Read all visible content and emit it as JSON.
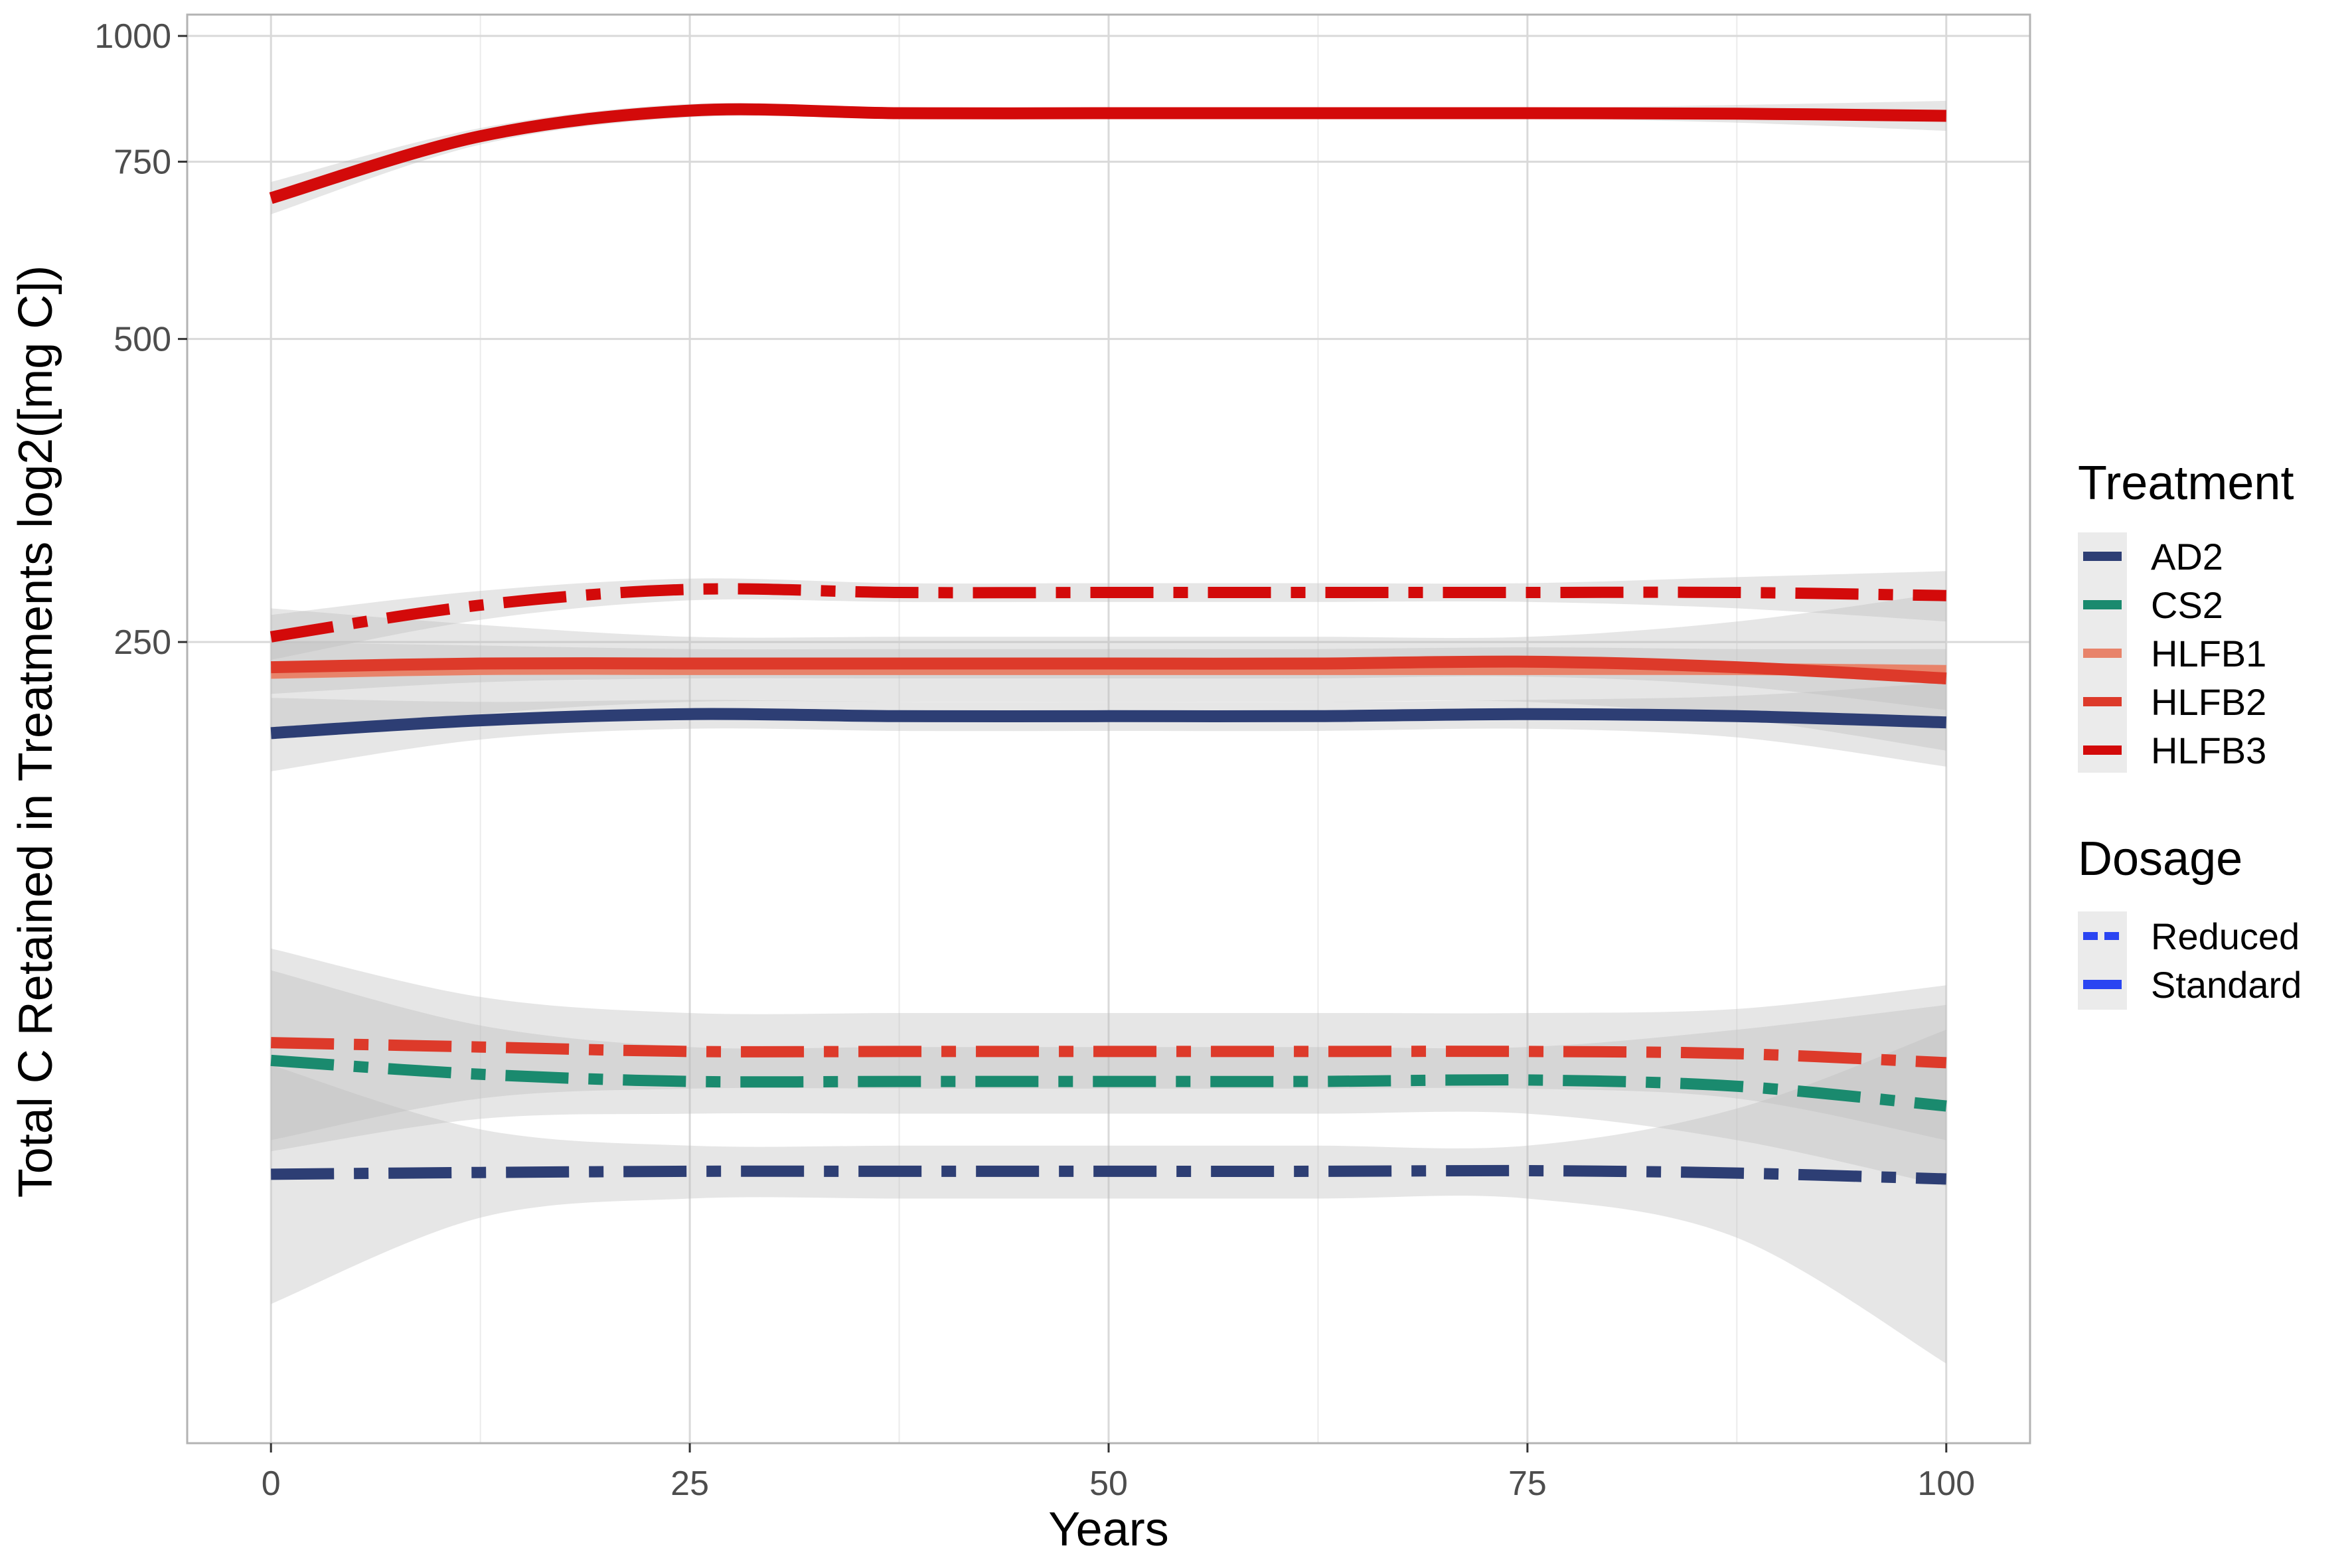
{
  "chart_data": {
    "type": "line",
    "xlabel": "Years",
    "ylabel": "Total C Retained in Treatments log2([mg C])",
    "scale": {
      "y": "log2"
    },
    "xlim": [
      -5,
      105
    ],
    "ylim": [
      40,
      1050
    ],
    "xticks": [
      0,
      25,
      50,
      75,
      100
    ],
    "xtick_labels": [
      "0",
      "25",
      "50",
      "75",
      "100"
    ],
    "yticks": [
      250,
      500,
      750,
      1000
    ],
    "ytick_labels": [
      "250",
      "500",
      "750",
      "1000"
    ],
    "grid": true,
    "legend_position": "right",
    "colors": {
      "AD2": "#2d3e74",
      "CS2": "#1a8a6e",
      "HLFB1": "#e8836a",
      "HLFB2": "#dd3a2a",
      "HLFB3": "#d30a0a",
      "ribbon": "#bebebe",
      "grid": "#d9d9d9",
      "frame": "#b3b3b3"
    },
    "legends": [
      {
        "title": "Treatment",
        "items": [
          {
            "label": "AD2",
            "color": "#2d3e74"
          },
          {
            "label": "CS2",
            "color": "#1a8a6e"
          },
          {
            "label": "HLFB1",
            "color": "#e8836a"
          },
          {
            "label": "HLFB2",
            "color": "#dd3a2a"
          },
          {
            "label": "HLFB3",
            "color": "#d30a0a"
          }
        ]
      },
      {
        "title": "Dosage",
        "items": [
          {
            "label": "Reduced",
            "color": "#2a45f2"
          },
          {
            "label": "Standard",
            "color": "#2a45f2"
          }
        ]
      }
    ],
    "x": [
      0,
      12.5,
      25,
      37.5,
      50,
      62.5,
      75,
      87.5,
      100
    ],
    "series": [
      {
        "treatment": "HLFB3",
        "dosage": "Standard",
        "values": [
          690,
          795,
          843,
          838,
          838,
          838,
          838,
          837,
          833
        ],
        "lower": [
          665,
          780,
          830,
          828,
          828,
          828,
          828,
          820,
          805
        ],
        "upper": [
          716,
          810,
          856,
          848,
          848,
          848,
          848,
          854,
          862
        ]
      },
      {
        "treatment": "HLFB3",
        "dosage": "Reduced",
        "values": [
          253,
          272,
          282,
          280,
          280,
          280,
          280,
          280,
          278
        ],
        "lower": [
          240,
          263,
          275,
          274,
          274,
          274,
          274,
          270,
          262
        ],
        "upper": [
          266,
          281,
          289,
          286,
          286,
          286,
          286,
          290,
          294
        ]
      },
      {
        "treatment": "HLFB1",
        "dosage": "Standard",
        "values": [
          233,
          235,
          235,
          235,
          235,
          235,
          235,
          235,
          234
        ],
        "lower": [
          200,
          212,
          218,
          218,
          218,
          218,
          218,
          210,
          195
        ],
        "upper": [
          270,
          260,
          253,
          253,
          253,
          253,
          253,
          262,
          280
        ]
      },
      {
        "treatment": "HLFB2",
        "dosage": "Standard",
        "values": [
          236,
          238,
          238,
          238,
          238,
          238,
          239,
          236,
          230
        ],
        "lower": [
          222,
          228,
          230,
          230,
          230,
          230,
          231,
          226,
          214
        ],
        "upper": [
          250,
          248,
          246,
          246,
          246,
          246,
          247,
          246,
          246
        ]
      },
      {
        "treatment": "AD2",
        "dosage": "Standard",
        "values": [
          203,
          209,
          212,
          211,
          211,
          211,
          212,
          211,
          208
        ],
        "lower": [
          186,
          200,
          205,
          204,
          204,
          204,
          205,
          201,
          188
        ],
        "upper": [
          220,
          218,
          219,
          218,
          218,
          218,
          219,
          221,
          228
        ]
      },
      {
        "treatment": "HLFB2",
        "dosage": "Reduced",
        "values": [
          100,
          99,
          98,
          98,
          98,
          98,
          98,
          97.5,
          95.5
        ],
        "lower": [
          80,
          88,
          90,
          90,
          90,
          90,
          90,
          88,
          80
        ],
        "upper": [
          124,
          111,
          107,
          107,
          107,
          107,
          107,
          108,
          114
        ]
      },
      {
        "treatment": "CS2",
        "dosage": "Reduced",
        "values": [
          96,
          93,
          91.5,
          91.5,
          91.5,
          91.5,
          91.8,
          90.5,
          86.5
        ],
        "lower": [
          78,
          84,
          85,
          85,
          85,
          85,
          85,
          80,
          72
        ],
        "upper": [
          118,
          104,
          99,
          99,
          99,
          99,
          99,
          103,
          109
        ]
      },
      {
        "treatment": "AD2",
        "dosage": "Reduced",
        "values": [
          74,
          74.3,
          74.5,
          74.5,
          74.5,
          74.5,
          74.6,
          74.2,
          73.2
        ],
        "lower": [
          55,
          67,
          70,
          70,
          70,
          70,
          70,
          64,
          48
        ],
        "upper": [
          95,
          82,
          79,
          79,
          79,
          79,
          79,
          86,
          103
        ]
      }
    ]
  }
}
